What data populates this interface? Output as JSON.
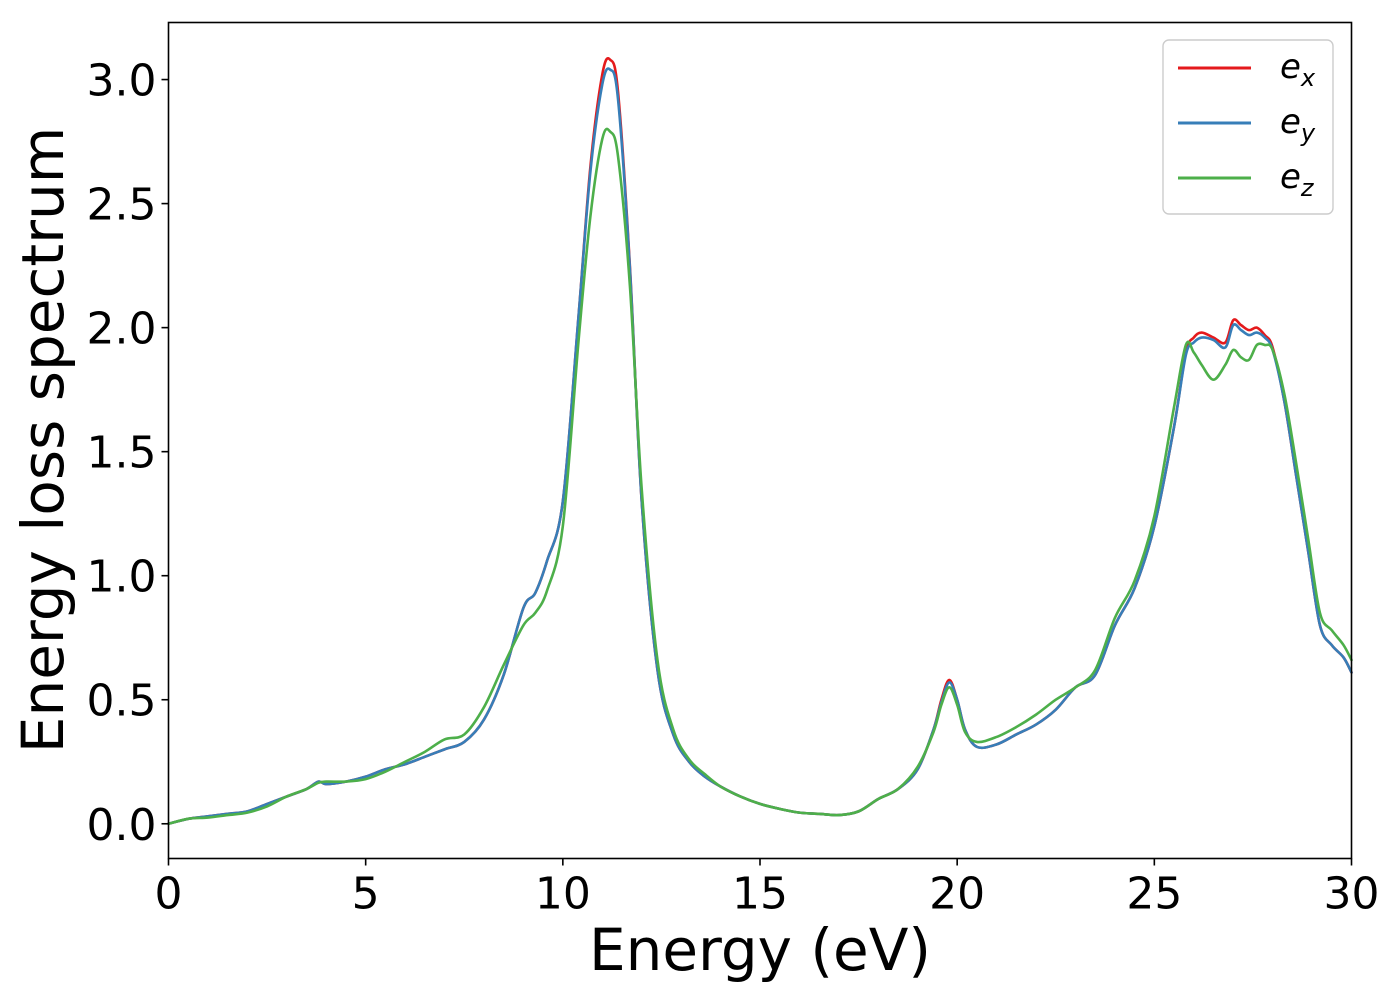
{
  "chart_data": {
    "type": "line",
    "title": "",
    "xlabel": "Energy (eV)",
    "ylabel": "Energy loss spectrum",
    "xlim": [
      0,
      30
    ],
    "ylim": [
      -0.14,
      3.23
    ],
    "xticks": [
      0,
      5,
      10,
      15,
      20,
      25,
      30
    ],
    "xtick_labels": [
      "0",
      "5",
      "10",
      "15",
      "20",
      "25",
      "30"
    ],
    "yticks": [
      0.0,
      0.5,
      1.0,
      1.5,
      2.0,
      2.5,
      3.0
    ],
    "ytick_labels": [
      "0.0",
      "0.5",
      "1.0",
      "1.5",
      "2.0",
      "2.5",
      "3.0"
    ],
    "grid": false,
    "legend_position": "top-right",
    "x": [
      0,
      0.5,
      1.0,
      1.5,
      2.0,
      2.5,
      3.0,
      3.5,
      3.8,
      4.0,
      4.5,
      5.0,
      5.5,
      6.0,
      6.5,
      7.0,
      7.5,
      8.0,
      8.5,
      9.0,
      9.3,
      9.6,
      10.0,
      10.4,
      10.7,
      11.0,
      11.2,
      11.4,
      11.7,
      12.0,
      12.4,
      12.8,
      13.2,
      13.6,
      14.0,
      14.5,
      15.0,
      15.5,
      16.0,
      16.5,
      17.0,
      17.5,
      18.0,
      18.5,
      19.0,
      19.4,
      19.6,
      19.8,
      20.0,
      20.2,
      20.5,
      21.0,
      21.5,
      22.0,
      22.5,
      23.0,
      23.5,
      24.0,
      24.5,
      25.0,
      25.5,
      25.8,
      26.0,
      26.2,
      26.5,
      26.8,
      27.0,
      27.2,
      27.4,
      27.6,
      27.8,
      28.0,
      28.3,
      28.6,
      28.9,
      29.2,
      29.5,
      29.8,
      30.0
    ],
    "series": [
      {
        "name": "e_x",
        "label_main": "e",
        "label_sub": "x",
        "color": "#e41a1c",
        "values": [
          0.0,
          0.02,
          0.03,
          0.04,
          0.05,
          0.08,
          0.11,
          0.14,
          0.17,
          0.16,
          0.17,
          0.19,
          0.22,
          0.24,
          0.27,
          0.3,
          0.33,
          0.42,
          0.6,
          0.87,
          0.93,
          1.06,
          1.3,
          2.05,
          2.65,
          3.02,
          3.08,
          2.95,
          2.25,
          1.3,
          0.62,
          0.36,
          0.25,
          0.19,
          0.15,
          0.11,
          0.08,
          0.06,
          0.045,
          0.04,
          0.035,
          0.05,
          0.1,
          0.14,
          0.22,
          0.38,
          0.5,
          0.58,
          0.5,
          0.38,
          0.31,
          0.32,
          0.36,
          0.4,
          0.46,
          0.55,
          0.6,
          0.8,
          0.95,
          1.2,
          1.6,
          1.9,
          1.96,
          1.98,
          1.96,
          1.94,
          2.03,
          2.01,
          1.99,
          2.0,
          1.97,
          1.92,
          1.7,
          1.4,
          1.1,
          0.8,
          0.72,
          0.67,
          0.61
        ]
      },
      {
        "name": "e_y",
        "label_main": "e",
        "label_sub": "y",
        "color": "#377eb8",
        "values": [
          0.0,
          0.02,
          0.03,
          0.04,
          0.05,
          0.08,
          0.11,
          0.14,
          0.17,
          0.16,
          0.17,
          0.19,
          0.22,
          0.24,
          0.27,
          0.3,
          0.33,
          0.42,
          0.6,
          0.87,
          0.93,
          1.06,
          1.3,
          2.05,
          2.63,
          2.98,
          3.04,
          2.92,
          2.24,
          1.3,
          0.62,
          0.36,
          0.25,
          0.19,
          0.15,
          0.11,
          0.08,
          0.06,
          0.045,
          0.04,
          0.035,
          0.05,
          0.1,
          0.14,
          0.22,
          0.38,
          0.49,
          0.57,
          0.5,
          0.38,
          0.31,
          0.32,
          0.36,
          0.4,
          0.46,
          0.55,
          0.6,
          0.8,
          0.95,
          1.2,
          1.6,
          1.89,
          1.94,
          1.96,
          1.95,
          1.92,
          2.01,
          1.99,
          1.97,
          1.98,
          1.96,
          1.91,
          1.7,
          1.4,
          1.1,
          0.8,
          0.72,
          0.67,
          0.61
        ]
      },
      {
        "name": "e_z",
        "label_main": "e",
        "label_sub": "z",
        "color": "#4daf4a",
        "values": [
          0.0,
          0.02,
          0.025,
          0.035,
          0.045,
          0.07,
          0.11,
          0.14,
          0.165,
          0.17,
          0.17,
          0.18,
          0.21,
          0.25,
          0.29,
          0.34,
          0.36,
          0.47,
          0.64,
          0.8,
          0.85,
          0.94,
          1.2,
          1.95,
          2.45,
          2.76,
          2.79,
          2.69,
          2.17,
          1.35,
          0.66,
          0.38,
          0.26,
          0.2,
          0.15,
          0.11,
          0.08,
          0.06,
          0.045,
          0.04,
          0.035,
          0.05,
          0.1,
          0.14,
          0.23,
          0.37,
          0.48,
          0.55,
          0.48,
          0.37,
          0.33,
          0.35,
          0.39,
          0.44,
          0.5,
          0.55,
          0.62,
          0.83,
          0.98,
          1.24,
          1.68,
          1.93,
          1.9,
          1.85,
          1.79,
          1.85,
          1.91,
          1.88,
          1.87,
          1.93,
          1.93,
          1.91,
          1.73,
          1.45,
          1.15,
          0.85,
          0.78,
          0.72,
          0.66
        ]
      }
    ]
  }
}
